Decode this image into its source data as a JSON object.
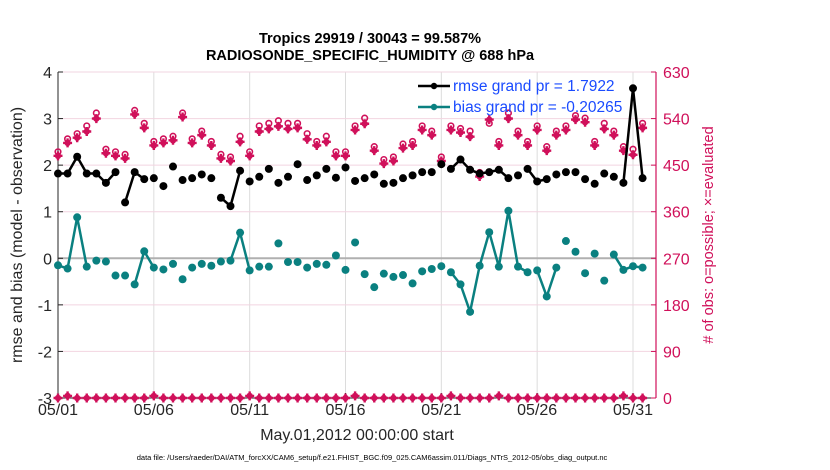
{
  "chart_data": {
    "type": "line",
    "title": [
      "Tropics 29919 / 30043 = 99.587%",
      "RADIOSONDE_SPECIFIC_HUMIDITY @ 688 hPa"
    ],
    "xlabel": "May.01,2012 00:00:00 start",
    "ylabel": "rmse and bias (model - observation)",
    "ylabel_right": "# of obs: o=possible; ×=evaluated",
    "footnote": "data file: /Users/raeder/DAI/ATM_forcXX/CAM6_setup/f.e21.FHIST_BGC.f09_025.CAM6assim.011/Diags_NTrS_2012-05/obs_diag_output.nc",
    "x_tick_labels": [
      "05/01",
      "05/06",
      "05/11",
      "05/16",
      "05/21",
      "05/26",
      "05/31"
    ],
    "x_tick_days": [
      0,
      5,
      10,
      15,
      20,
      25,
      30
    ],
    "xlim_days": [
      0,
      31.2
    ],
    "ylim": [
      -3,
      4
    ],
    "y_ticks": [
      -3,
      -2,
      -1,
      0,
      1,
      2,
      3,
      4
    ],
    "ylim_right": [
      0,
      630
    ],
    "y_ticks_right": [
      0,
      90,
      180,
      270,
      360,
      450,
      540,
      630
    ],
    "grid": true,
    "legend_placement": "top-right",
    "colors": {
      "rmse": "#000000",
      "bias": "#0a8080",
      "obs": "#d0105a",
      "legend_text": "#1a4bff",
      "zero_line": "#b0b0b0"
    },
    "series": [
      {
        "name": "rmse grand pr = 1.7922",
        "key": "rmse",
        "x_days": [
          0,
          0.5,
          1,
          1.5,
          2,
          2.5,
          3,
          3.5,
          4,
          4.5,
          5,
          5.5,
          6,
          6.5,
          7,
          7.5,
          8,
          8.5,
          9,
          9.5,
          10,
          10.5,
          11,
          11.5,
          12,
          12.5,
          13,
          13.5,
          14,
          14.5,
          15,
          15.5,
          16,
          16.5,
          17,
          17.5,
          18,
          18.5,
          19,
          19.5,
          20,
          20.5,
          21,
          21.5,
          22,
          22.5,
          23,
          23.5,
          24,
          24.5,
          25,
          25.5,
          26,
          26.5,
          27,
          27.5,
          28,
          28.5,
          29,
          29.5,
          30,
          30.5
        ],
        "values": [
          1.82,
          1.82,
          2.18,
          1.82,
          1.82,
          1.62,
          1.85,
          1.2,
          1.85,
          1.7,
          1.72,
          1.55,
          1.97,
          1.68,
          1.72,
          1.8,
          1.72,
          1.3,
          1.12,
          1.88,
          1.65,
          1.75,
          1.92,
          1.62,
          1.75,
          2.02,
          1.68,
          1.78,
          1.92,
          1.73,
          1.95,
          1.66,
          1.72,
          1.8,
          1.6,
          1.62,
          1.72,
          1.78,
          1.85,
          1.85,
          2.02,
          1.92,
          2.12,
          1.9,
          1.82,
          1.85,
          1.9,
          1.72,
          1.78,
          1.92,
          1.65,
          1.7,
          1.8,
          1.85,
          1.85,
          1.7,
          1.6,
          1.82,
          1.75,
          1.62,
          3.65,
          1.72
        ],
        "lines": [
          [
            0,
            6
          ],
          [
            7,
            9
          ],
          [
            17,
            19
          ],
          [
            41,
            47
          ],
          [
            49,
            51
          ],
          [
            59,
            61
          ]
        ]
      },
      {
        "name": "bias grand pr = -0.20265",
        "key": "bias",
        "x_days": [
          0,
          0.5,
          1,
          1.5,
          2,
          2.5,
          3,
          3.5,
          4,
          4.5,
          5,
          5.5,
          6,
          6.5,
          7,
          7.5,
          8,
          8.5,
          9,
          9.5,
          10,
          10.5,
          11,
          11.5,
          12,
          12.5,
          13,
          13.5,
          14,
          14.5,
          15,
          15.5,
          16,
          16.5,
          17,
          17.5,
          18,
          18.5,
          19,
          19.5,
          20,
          20.5,
          21,
          21.5,
          22,
          22.5,
          23,
          23.5,
          24,
          24.5,
          25,
          25.5,
          26,
          26.5,
          27,
          27.5,
          28,
          28.5,
          29,
          29.5,
          30,
          30.5
        ],
        "values": [
          -0.15,
          -0.22,
          0.88,
          -0.18,
          -0.05,
          -0.07,
          -0.37,
          -0.37,
          -0.56,
          0.15,
          -0.2,
          -0.24,
          -0.12,
          -0.45,
          -0.2,
          -0.12,
          -0.16,
          -0.07,
          -0.05,
          0.55,
          -0.26,
          -0.18,
          -0.18,
          0.32,
          -0.08,
          -0.08,
          -0.2,
          -0.12,
          -0.14,
          0.06,
          -0.25,
          0.34,
          -0.34,
          -0.62,
          -0.33,
          -0.4,
          -0.36,
          -0.54,
          -0.28,
          -0.23,
          -0.17,
          -0.3,
          -0.56,
          -1.15,
          -0.16,
          0.56,
          -0.18,
          1.02,
          -0.18,
          -0.3,
          -0.26,
          -0.82,
          -0.2,
          0.37,
          0.14,
          -0.32,
          0.1,
          -0.48,
          0.08,
          -0.25,
          -0.17,
          -0.2
        ],
        "lines": [
          [
            0,
            3
          ],
          [
            8,
            10
          ],
          [
            18,
            20
          ],
          [
            41,
            49
          ],
          [
            50,
            52
          ],
          [
            58,
            61
          ]
        ]
      }
    ],
    "obs_possible": {
      "name": "# of obs possible",
      "marker": "o",
      "x_days": [
        0,
        0.5,
        1,
        1.5,
        2,
        2.5,
        3,
        3.5,
        4,
        4.5,
        5,
        5.5,
        6,
        6.5,
        7,
        7.5,
        8,
        8.5,
        9,
        9.5,
        10,
        10.5,
        11,
        11.5,
        12,
        12.5,
        13,
        13.5,
        14,
        14.5,
        15,
        15.5,
        16,
        16.5,
        17,
        17.5,
        18,
        18.5,
        19,
        19.5,
        20,
        20.5,
        21,
        21.5,
        22,
        22.5,
        23,
        23.5,
        24,
        24.5,
        25,
        25.5,
        26,
        26.5,
        27,
        27.5,
        28,
        28.5,
        29,
        29.5,
        30,
        30.5
      ],
      "values": [
        470,
        495,
        505,
        520,
        545,
        475,
        470,
        465,
        550,
        525,
        490,
        495,
        500,
        545,
        495,
        510,
        490,
        465,
        460,
        500,
        470,
        520,
        525,
        530,
        525,
        525,
        505,
        490,
        500,
        470,
        470,
        520,
        535,
        480,
        455,
        460,
        485,
        490,
        520,
        510,
        460,
        520,
        515,
        510,
        430,
        525,
        490,
        545,
        510,
        490,
        520,
        480,
        510,
        520,
        540,
        535,
        490,
        525,
        510,
        480,
        475,
        525
      ]
    },
    "obs_evaluated": {
      "name": "# of obs evaluated",
      "marker": "x",
      "values": [
        468,
        493,
        503,
        515,
        540,
        473,
        468,
        463,
        548,
        522,
        488,
        493,
        498,
        543,
        493,
        508,
        488,
        463,
        458,
        495,
        468,
        515,
        520,
        525,
        520,
        522,
        500,
        488,
        495,
        468,
        468,
        518,
        530,
        478,
        453,
        458,
        483,
        488,
        518,
        508,
        458,
        518,
        513,
        505,
        428,
        538,
        488,
        540,
        508,
        488,
        518,
        478,
        508,
        518,
        538,
        533,
        488,
        520,
        508,
        478,
        470,
        522
      ]
    },
    "obs_count_bottom_row": {
      "x_days": [
        0,
        0.5,
        1,
        1.5,
        2,
        2.5,
        3,
        3.5,
        4,
        4.5,
        5,
        5.5,
        6,
        6.5,
        7,
        7.5,
        8,
        8.5,
        9,
        9.5,
        10,
        10.5,
        11,
        11.5,
        12,
        12.5,
        13,
        13.5,
        14,
        14.5,
        15,
        15.5,
        16,
        16.5,
        17,
        17.5,
        18,
        18.5,
        19,
        19.5,
        20,
        20.5,
        21,
        21.5,
        22,
        22.5,
        23,
        23.5,
        24,
        24.5,
        25,
        25.5,
        26,
        26.5,
        27,
        27.5,
        28,
        28.5,
        29,
        29.5,
        30,
        30.5
      ],
      "values": [
        0,
        4,
        0,
        0,
        0,
        0,
        0,
        0,
        0,
        0,
        4,
        0,
        0,
        0,
        0,
        0,
        0,
        0,
        0,
        0,
        4,
        0,
        0,
        0,
        0,
        0,
        0,
        0,
        0,
        0,
        0,
        4,
        0,
        0,
        0,
        0,
        0,
        0,
        0,
        0,
        0,
        4,
        0,
        0,
        0,
        0,
        4,
        0,
        0,
        0,
        0,
        0,
        0,
        0,
        0,
        0,
        0,
        0,
        0,
        4,
        0,
        0
      ]
    }
  }
}
